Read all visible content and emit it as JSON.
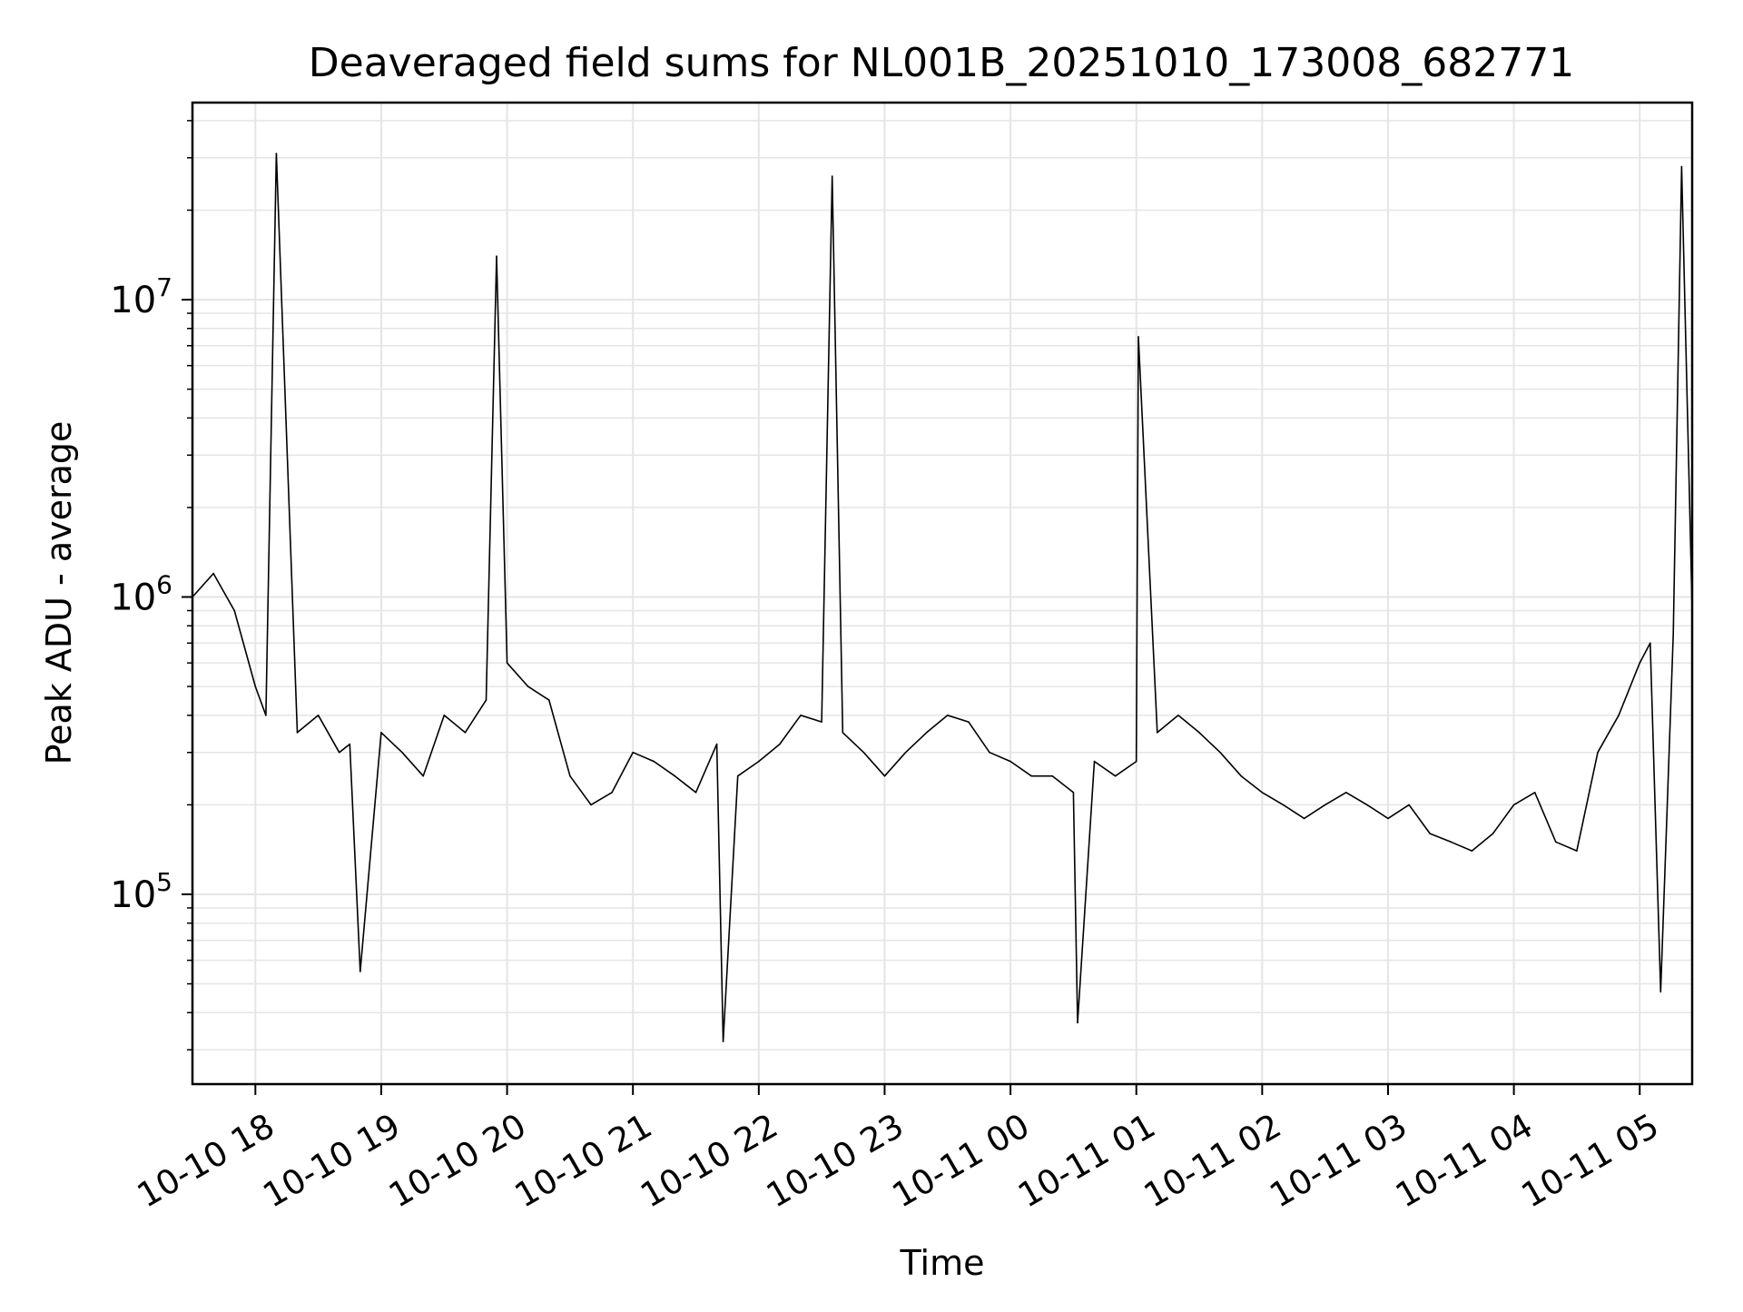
{
  "chart_data": {
    "type": "line",
    "title": "Deaveraged field sums for NL001B_20251010_173008_682771",
    "xlabel": "Time",
    "ylabel": "Peak ADU - average",
    "yscale": "log",
    "grid": true,
    "line_color": "#000000",
    "grid_color": "#e5e5e5",
    "xlim": [
      "2025-10-10 17:30",
      "2025-10-11 05:25"
    ],
    "ylim": [
      23000,
      46000000
    ],
    "x_ticks": [
      {
        "t": "2025-10-10 18:00",
        "label": "10-10 18"
      },
      {
        "t": "2025-10-10 19:00",
        "label": "10-10 19"
      },
      {
        "t": "2025-10-10 20:00",
        "label": "10-10 20"
      },
      {
        "t": "2025-10-10 21:00",
        "label": "10-10 21"
      },
      {
        "t": "2025-10-10 22:00",
        "label": "10-10 22"
      },
      {
        "t": "2025-10-10 23:00",
        "label": "10-10 23"
      },
      {
        "t": "2025-10-11 00:00",
        "label": "10-11 00"
      },
      {
        "t": "2025-10-11 01:00",
        "label": "10-11 01"
      },
      {
        "t": "2025-10-11 02:00",
        "label": "10-11 02"
      },
      {
        "t": "2025-10-11 03:00",
        "label": "10-11 03"
      },
      {
        "t": "2025-10-11 04:00",
        "label": "10-11 04"
      },
      {
        "t": "2025-10-11 05:00",
        "label": "10-11 05"
      }
    ],
    "y_ticks": [
      {
        "value": 100000,
        "base": "10",
        "exp": "5"
      },
      {
        "value": 1000000,
        "base": "10",
        "exp": "6"
      },
      {
        "value": 10000000,
        "base": "10",
        "exp": "7"
      }
    ],
    "series": [
      {
        "x": [
          "2025-10-10 17:30",
          "2025-10-10 17:40",
          "2025-10-10 17:50",
          "2025-10-10 18:00",
          "2025-10-10 18:05",
          "2025-10-10 18:10",
          "2025-10-10 18:20",
          "2025-10-10 18:30",
          "2025-10-10 18:40",
          "2025-10-10 18:45",
          "2025-10-10 18:50",
          "2025-10-10 19:00",
          "2025-10-10 19:10",
          "2025-10-10 19:20",
          "2025-10-10 19:30",
          "2025-10-10 19:40",
          "2025-10-10 19:50",
          "2025-10-10 19:55",
          "2025-10-10 20:00",
          "2025-10-10 20:10",
          "2025-10-10 20:20",
          "2025-10-10 20:30",
          "2025-10-10 20:40",
          "2025-10-10 20:50",
          "2025-10-10 21:00",
          "2025-10-10 21:10",
          "2025-10-10 21:20",
          "2025-10-10 21:30",
          "2025-10-10 21:40",
          "2025-10-10 21:43",
          "2025-10-10 21:50",
          "2025-10-10 22:00",
          "2025-10-10 22:10",
          "2025-10-10 22:20",
          "2025-10-10 22:30",
          "2025-10-10 22:35",
          "2025-10-10 22:40",
          "2025-10-10 22:50",
          "2025-10-10 23:00",
          "2025-10-10 23:10",
          "2025-10-10 23:20",
          "2025-10-10 23:30",
          "2025-10-10 23:40",
          "2025-10-10 23:50",
          "2025-10-11 00:00",
          "2025-10-11 00:10",
          "2025-10-11 00:20",
          "2025-10-11 00:30",
          "2025-10-11 00:32",
          "2025-10-11 00:40",
          "2025-10-11 00:50",
          "2025-10-11 01:00",
          "2025-10-11 01:01",
          "2025-10-11 01:10",
          "2025-10-11 01:20",
          "2025-10-11 01:30",
          "2025-10-11 01:40",
          "2025-10-11 01:50",
          "2025-10-11 02:00",
          "2025-10-11 02:10",
          "2025-10-11 02:20",
          "2025-10-11 02:30",
          "2025-10-11 02:40",
          "2025-10-11 02:50",
          "2025-10-11 03:00",
          "2025-10-11 03:10",
          "2025-10-11 03:20",
          "2025-10-11 03:30",
          "2025-10-11 03:40",
          "2025-10-11 03:50",
          "2025-10-11 04:00",
          "2025-10-11 04:10",
          "2025-10-11 04:20",
          "2025-10-11 04:30",
          "2025-10-11 04:40",
          "2025-10-11 04:50",
          "2025-10-11 05:00",
          "2025-10-11 05:05",
          "2025-10-11 05:10",
          "2025-10-11 05:16",
          "2025-10-11 05:20",
          "2025-10-11 05:25"
        ],
        "y": [
          1000000,
          1200000,
          900000,
          500000,
          400000,
          31000000,
          350000,
          400000,
          300000,
          320000,
          55000,
          350000,
          300000,
          250000,
          400000,
          350000,
          450000,
          14000000,
          600000,
          500000,
          450000,
          250000,
          200000,
          220000,
          300000,
          280000,
          250000,
          220000,
          320000,
          32000,
          250000,
          280000,
          320000,
          400000,
          380000,
          26000000,
          350000,
          300000,
          250000,
          300000,
          350000,
          400000,
          380000,
          300000,
          280000,
          250000,
          250000,
          220000,
          37000,
          280000,
          250000,
          280000,
          7500000,
          350000,
          400000,
          350000,
          300000,
          250000,
          220000,
          200000,
          180000,
          200000,
          220000,
          200000,
          180000,
          200000,
          160000,
          150000,
          140000,
          160000,
          200000,
          220000,
          150000,
          140000,
          300000,
          400000,
          600000,
          700000,
          47000,
          750000,
          28000000,
          900000
        ]
      }
    ]
  }
}
